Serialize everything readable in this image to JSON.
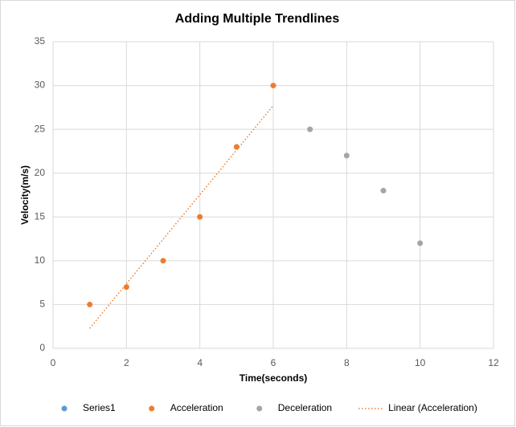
{
  "chart_data": {
    "type": "scatter",
    "title": "Adding Multiple Trendlines",
    "x_label": "Time(seconds)",
    "y_label": "Velocity(m/s)",
    "series": [
      {
        "name": "Series1",
        "color": "#5b9bd5",
        "x": [],
        "values": []
      },
      {
        "name": "Acceleration",
        "color": "#ed7d31",
        "x": [
          1,
          2,
          3,
          4,
          5,
          6
        ],
        "values": [
          5,
          7,
          10,
          15,
          23,
          30
        ],
        "trendline": {
          "type": "linear",
          "name": "Linear (Acceleration)"
        }
      },
      {
        "name": "Deceleration",
        "color": "#a5a5a5",
        "x": [
          7,
          8,
          9,
          10
        ],
        "values": [
          25,
          22,
          18,
          12
        ]
      }
    ],
    "xlim": [
      0,
      12
    ],
    "xticks": [
      0,
      2,
      4,
      6,
      8,
      10,
      12
    ],
    "ylim": [
      0,
      35
    ],
    "yticks": [
      0,
      5,
      10,
      15,
      20,
      25,
      30,
      35
    ],
    "grid": true,
    "legend": "bottom"
  }
}
